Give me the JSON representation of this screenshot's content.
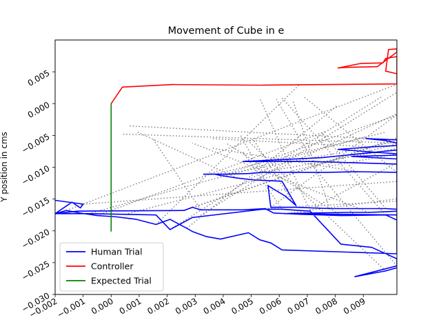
{
  "chart_data": {
    "type": "line",
    "title": "Movement of Cube in e",
    "xlabel": "",
    "ylabel": "Y position in cms",
    "xlim": [
      -0.002,
      0.0102
    ],
    "ylim": [
      -0.03,
      0.01
    ],
    "xticks": [
      -0.002,
      -0.001,
      0.0,
      0.001,
      0.002,
      0.003,
      0.004,
      0.005,
      0.006,
      0.007,
      0.008,
      0.009
    ],
    "xtick_labels": [
      "−0.002",
      "−0.001",
      "0.000",
      "0.001",
      "0.002",
      "0.003",
      "0.004",
      "0.005",
      "0.006",
      "0.007",
      "0.008",
      "0.009"
    ],
    "yticks": [
      0.005,
      0.0,
      -0.005,
      -0.01,
      -0.015,
      -0.02,
      -0.025,
      -0.03
    ],
    "ytick_labels": [
      "0.005",
      "0.000",
      "−0.005",
      "−0.010",
      "−0.015",
      "−0.020",
      "−0.025",
      "−0.030"
    ],
    "grid": false,
    "legend_position": "lower-left",
    "series": [
      {
        "name": "Human Trial",
        "color": "#0000ff",
        "style": "solid",
        "x": [
          -0.002,
          -0.001,
          -0.0011,
          -0.0014,
          -0.002,
          -0.0012,
          0.0026,
          0.0029,
          0.0032,
          0.0047,
          0.0055,
          0.0058,
          0.0068,
          0.0082,
          0.0098,
          0.0102,
          0.0102,
          0.0098,
          0.0088,
          0.0078,
          0.0066,
          0.0057,
          0.0056,
          0.0062,
          0.0066,
          0.0061,
          0.0051,
          0.0045,
          0.0039,
          0.0037,
          0.0033,
          0.0041,
          0.0049,
          0.0054,
          0.0077,
          0.0088,
          0.0102,
          0.0102,
          0.0086,
          0.0102,
          0.0102,
          0.0072,
          0.0047,
          0.0075,
          0.0102,
          0.0102,
          0.0081,
          0.0093,
          0.0102,
          0.0102,
          0.0091,
          0.0098,
          0.0102,
          0.0102,
          0.0062,
          0.0071,
          0.0085,
          0.0092,
          0.0098,
          0.0102,
          0.0102,
          0.0061,
          0.0057,
          0.0053,
          0.0049,
          0.0039,
          0.0034,
          0.0029,
          0.0027,
          0.0021,
          0.0016,
          0.0009,
          0.0002,
          -0.0005,
          -0.0011,
          -0.0016,
          -0.002,
          -0.0008,
          0.0005,
          0.0016,
          0.0021,
          0.0029,
          0.0031,
          0.0054,
          0.0061,
          0.0071,
          0.0082,
          0.0093,
          0.0102,
          0.0102,
          0.0087,
          0.0098,
          0.0102
        ],
        "y": [
          -0.0152,
          -0.0158,
          -0.0164,
          -0.0155,
          -0.0173,
          -0.0169,
          -0.0168,
          -0.0163,
          -0.0167,
          -0.0167,
          -0.0165,
          -0.0172,
          -0.0174,
          -0.0176,
          -0.0175,
          -0.0183,
          -0.0166,
          -0.0165,
          -0.0165,
          -0.0165,
          -0.0163,
          -0.0163,
          -0.0129,
          -0.0145,
          -0.016,
          -0.0122,
          -0.012,
          -0.0117,
          -0.0113,
          -0.0111,
          -0.0111,
          -0.0111,
          -0.011,
          -0.0108,
          -0.0108,
          -0.0107,
          -0.0108,
          -0.0087,
          -0.0083,
          -0.0081,
          -0.0095,
          -0.0091,
          -0.0091,
          -0.0085,
          -0.0073,
          -0.0079,
          -0.0072,
          -0.0068,
          -0.0066,
          -0.0057,
          -0.0055,
          -0.0058,
          -0.0062,
          -0.0175,
          -0.0173,
          -0.0172,
          -0.0171,
          -0.0171,
          -0.017,
          -0.0169,
          -0.0236,
          -0.023,
          -0.0219,
          -0.0214,
          -0.0203,
          -0.0213,
          -0.0209,
          -0.0201,
          -0.0196,
          -0.0182,
          -0.019,
          -0.0182,
          -0.0178,
          -0.0176,
          -0.0172,
          -0.0168,
          -0.0173,
          -0.0173,
          -0.0174,
          -0.0175,
          -0.0198,
          -0.0179,
          -0.0178,
          -0.0166,
          -0.0166,
          -0.0169,
          -0.0221,
          -0.0226,
          -0.0244,
          -0.0255,
          -0.0272,
          -0.0263,
          -0.0258
        ]
      },
      {
        "name": "Controller",
        "color": "#ff0000",
        "style": "solid",
        "x": [
          0.0,
          0.0004,
          0.0022,
          0.0053,
          0.0102,
          0.0102,
          0.0098,
          0.0097,
          0.0089,
          0.0081,
          0.0084,
          0.0095,
          0.0102,
          0.0102,
          0.0099,
          0.0098,
          0.0102
        ],
        "y": [
          0.0,
          0.0026,
          0.003,
          0.0029,
          0.0031,
          0.0074,
          0.0071,
          0.0064,
          0.0063,
          0.0056,
          0.0057,
          0.0058,
          0.0081,
          0.0086,
          0.0085,
          0.0051,
          0.0047
        ]
      },
      {
        "name": "Expected Trial",
        "color": "#008000",
        "style": "solid",
        "x": [
          0.0,
          0.0
        ],
        "y": [
          0.0,
          -0.0201
        ]
      }
    ],
    "annotations": [
      {
        "note": "gray dotted connector lines between trial points",
        "color": "#808080",
        "style": "dotted"
      }
    ]
  }
}
